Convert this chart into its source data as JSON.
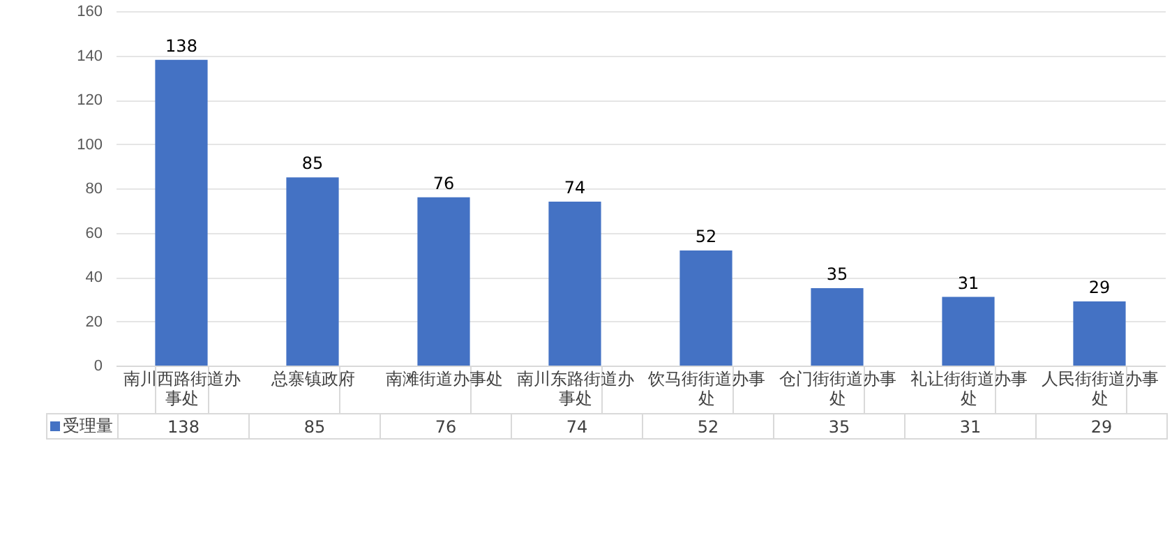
{
  "chart_data": {
    "type": "bar",
    "categories": [
      "南川西路街道办事处",
      "总寨镇政府",
      "南滩街道办事处",
      "南川东路街道办事处",
      "饮马街街道办事处",
      "仓门街街道办事处",
      "礼让街街道办事处",
      "人民街街道办事处"
    ],
    "series": [
      {
        "name": "受理量",
        "color": "#4472c4",
        "values": [
          138,
          85,
          76,
          74,
          52,
          35,
          31,
          29
        ],
        "value_labels": [
          "138",
          "85",
          "76",
          "74",
          "52",
          "35",
          "31",
          "29"
        ]
      }
    ],
    "ylim": [
      0,
      160
    ],
    "yticks": [
      0,
      20,
      40,
      60,
      80,
      100,
      120,
      140,
      160
    ],
    "grid": "y",
    "data_labels": true,
    "legend": "bottom"
  }
}
